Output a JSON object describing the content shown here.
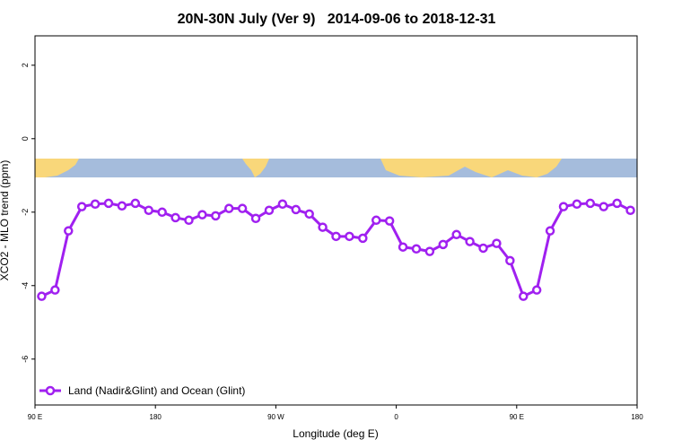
{
  "chart_data": {
    "type": "line",
    "title": "20N-30N July (Ver 9)   2014-09-06 to 2018-12-31",
    "x_label": "Longitude (deg E)",
    "y_label": "XCO2 - MLO trend (ppm)",
    "x": [
      95,
      105,
      115,
      125,
      135,
      145,
      155,
      165,
      175,
      185,
      195,
      205,
      215,
      225,
      235,
      245,
      255,
      265,
      275,
      285,
      295,
      305,
      315,
      325,
      335,
      345,
      355,
      365,
      375,
      385,
      395,
      405,
      415,
      425,
      435,
      445,
      455,
      465,
      475,
      485,
      495,
      505,
      515,
      525,
      535
    ],
    "series": [
      {
        "name": "Land (Nadir&Glint) and Ocean (Glint)",
        "color": "#a020f0",
        "values": [
          -4.29,
          -4.12,
          -2.51,
          -1.85,
          -1.78,
          -1.76,
          -1.83,
          -1.76,
          -1.95,
          -2.0,
          -2.15,
          -2.22,
          -2.07,
          -2.1,
          -1.9,
          -1.9,
          -2.17,
          -1.95,
          -1.78,
          -1.93,
          -2.05,
          -2.41,
          -2.66,
          -2.66,
          -2.71,
          -2.22,
          -2.24,
          -2.95,
          -3.0,
          -3.07,
          -2.88,
          -2.61,
          -2.8,
          -2.98,
          -2.85,
          -3.32,
          -4.29,
          -4.12,
          -2.51,
          -1.85,
          -1.78,
          -1.76,
          -1.85,
          -1.76,
          -1.95
        ]
      }
    ],
    "xlim": [
      90,
      540
    ],
    "xticks": [
      {
        "value": 90,
        "label": "90 E"
      },
      {
        "value": 180,
        "label": "180"
      },
      {
        "value": 270,
        "label": "90 W"
      },
      {
        "value": 360,
        "label": "0"
      },
      {
        "value": 450,
        "label": "90 E"
      },
      {
        "value": 540,
        "label": "180"
      }
    ],
    "ylim": [
      -7.25,
      2.8
    ],
    "yticks": [
      -6,
      -4,
      -2,
      0,
      2
    ],
    "legend": "bottom-left"
  }
}
